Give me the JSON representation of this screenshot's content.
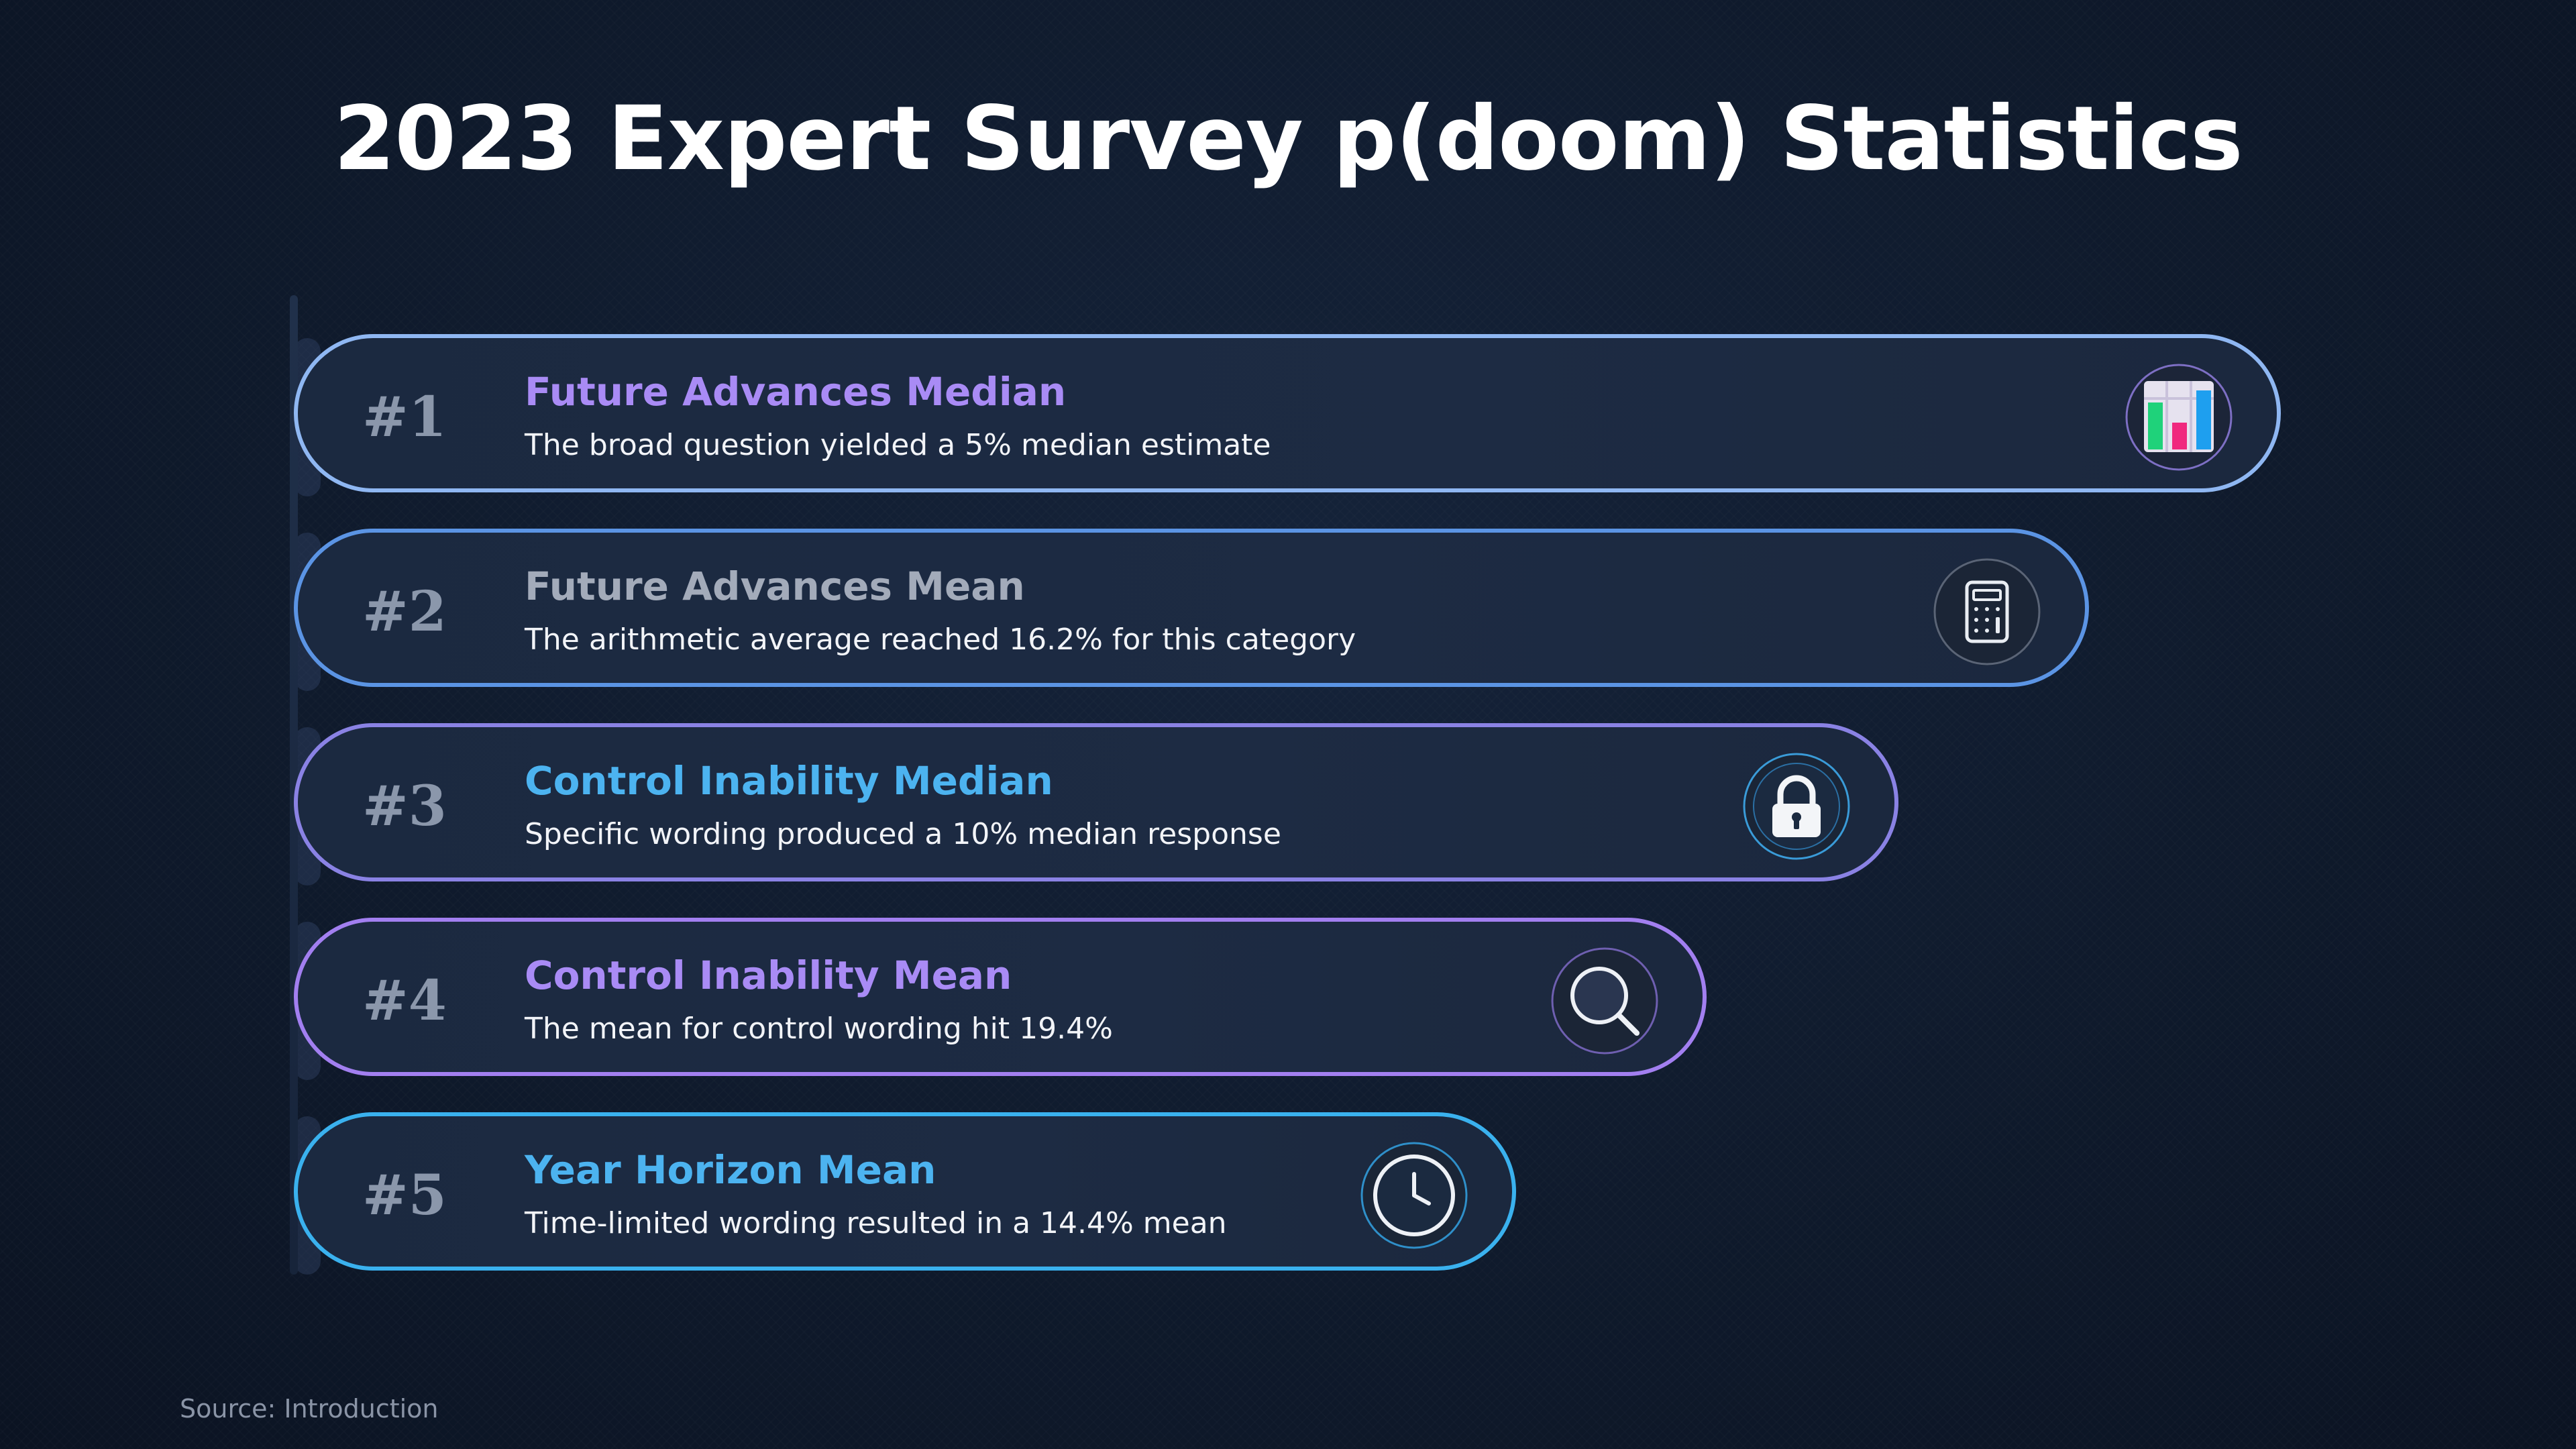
{
  "title": "2023 Expert Survey p(doom) Statistics",
  "items": [
    {
      "rank": "#1",
      "label": "Future Advances Median",
      "description": "The broad question yielded a 5% median estimate",
      "icon": "bar-chart-icon",
      "label_color": "#a98bf5",
      "border_color": "#8fb7f2"
    },
    {
      "rank": "#2",
      "label": "Future Advances Mean",
      "description": "The arithmetic average reached 16.2% for this category",
      "icon": "calculator-icon",
      "label_color": "#a3abba",
      "border_color": "#5b94e4"
    },
    {
      "rank": "#3",
      "label": "Control Inability Median",
      "description": "Specific wording produced a 10% median response",
      "icon": "lock-icon",
      "label_color": "#4cb3f0",
      "border_color": "#8a82e4"
    },
    {
      "rank": "#4",
      "label": "Control Inability Mean",
      "description": "The mean for control wording hit 19.4%",
      "icon": "search-icon",
      "label_color": "#a98bf5",
      "border_color": "#a27ff0"
    },
    {
      "rank": "#5",
      "label": "Year Horizon Mean",
      "description": "Time-limited wording resulted in a 14.4% mean",
      "icon": "clock-icon",
      "label_color": "#4cb3f0",
      "border_color": "#3ab1ee"
    }
  ],
  "source": "Source: Introduction"
}
